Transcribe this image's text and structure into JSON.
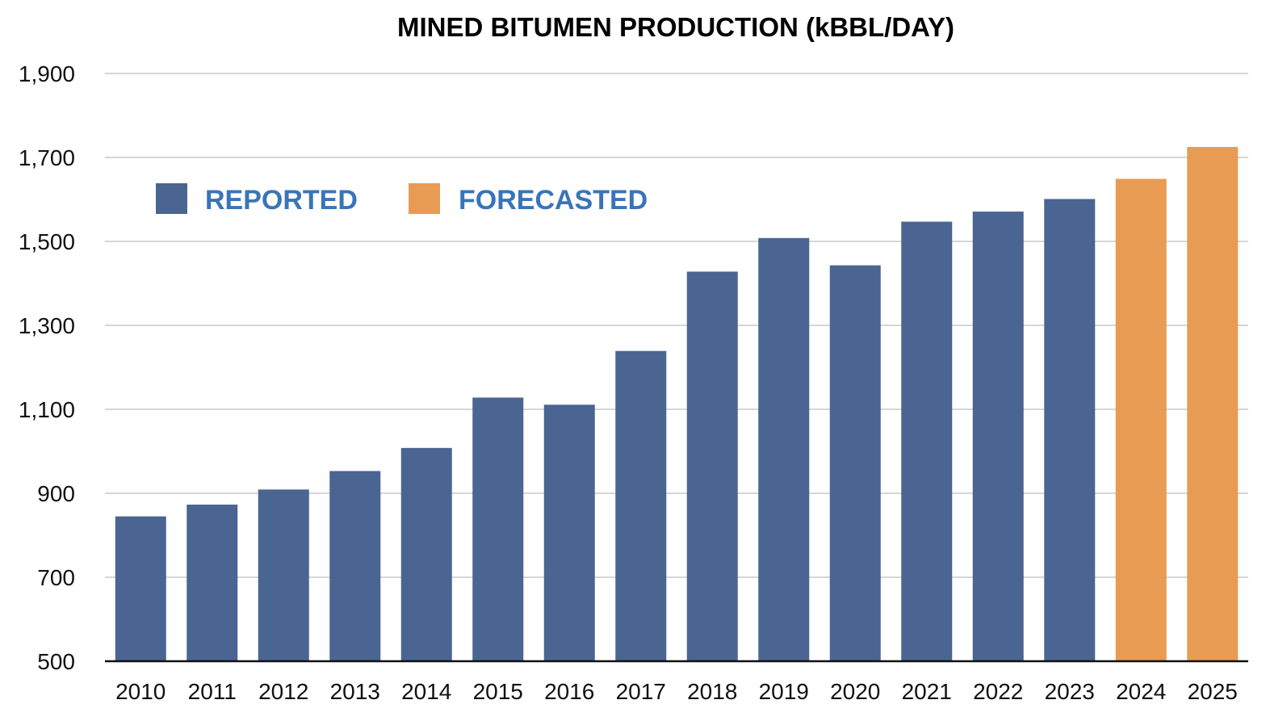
{
  "chart_data": {
    "type": "bar",
    "title": "MINED BITUMEN PRODUCTION (kBBL/DAY)",
    "xlabel": "",
    "ylabel": "",
    "categories": [
      "2010",
      "2011",
      "2012",
      "2013",
      "2014",
      "2015",
      "2016",
      "2017",
      "2018",
      "2019",
      "2020",
      "2021",
      "2022",
      "2023",
      "2024",
      "2025"
    ],
    "values": [
      845,
      873,
      909,
      953,
      1008,
      1128,
      1111,
      1239,
      1428,
      1508,
      1443,
      1547,
      1571,
      1601,
      1649,
      1725
    ],
    "series_type": [
      "Reported",
      "Reported",
      "Reported",
      "Reported",
      "Reported",
      "Reported",
      "Reported",
      "Reported",
      "Reported",
      "Reported",
      "Reported",
      "Reported",
      "Reported",
      "Reported",
      "Forecasted",
      "Forecasted"
    ],
    "ylim": [
      500,
      1900
    ],
    "yticks": [
      500,
      700,
      900,
      1100,
      1300,
      1500,
      1700,
      1900
    ],
    "ytick_labels": [
      "500",
      "700",
      "900",
      "1,100",
      "1,300",
      "1,500",
      "1,700",
      "1,900"
    ],
    "grid": true,
    "legend": {
      "placement": "top-left",
      "entries": [
        {
          "label": "REPORTED",
          "color": "#4a6592",
          "text_color": "#3a74b8"
        },
        {
          "label": "FORECASTED",
          "color": "#e89b52",
          "text_color": "#3a74b8"
        }
      ]
    },
    "colors": {
      "Reported": "#4a6592",
      "Forecasted": "#e89b52"
    }
  }
}
